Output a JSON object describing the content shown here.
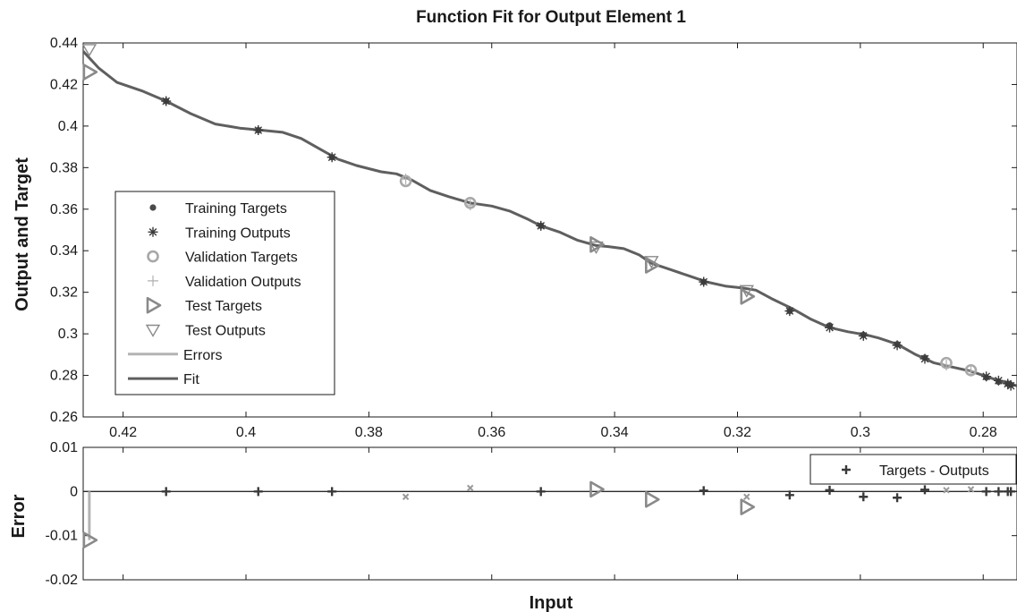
{
  "chart_data": [
    {
      "type": "scatter",
      "title": "Function Fit for Output Element 1",
      "xlabel": "",
      "ylabel": "Output and Target",
      "x_reversed": true,
      "xlim": [
        0.4265,
        0.2745
      ],
      "ylim": [
        0.26,
        0.44
      ],
      "xticks": [
        {
          "v": 0.42,
          "label": "0.42"
        },
        {
          "v": 0.4,
          "label": "0.4"
        },
        {
          "v": 0.38,
          "label": "0.38"
        },
        {
          "v": 0.36,
          "label": "0.36"
        },
        {
          "v": 0.34,
          "label": "0.34"
        },
        {
          "v": 0.32,
          "label": "0.32"
        },
        {
          "v": 0.3,
          "label": "0.3"
        },
        {
          "v": 0.28,
          "label": "0.28"
        }
      ],
      "yticks": [
        {
          "v": 0.26,
          "label": "0.26"
        },
        {
          "v": 0.28,
          "label": "0.28"
        },
        {
          "v": 0.3,
          "label": "0.3"
        },
        {
          "v": 0.32,
          "label": "0.32"
        },
        {
          "v": 0.34,
          "label": "0.34"
        },
        {
          "v": 0.36,
          "label": "0.36"
        },
        {
          "v": 0.38,
          "label": "0.38"
        },
        {
          "v": 0.4,
          "label": "0.4"
        },
        {
          "v": 0.42,
          "label": "0.42"
        },
        {
          "v": 0.44,
          "label": "0.44"
        }
      ],
      "legend_position": "left",
      "legend": [
        {
          "marker": "dot",
          "label": "Training Targets"
        },
        {
          "marker": "asterisk",
          "label": "Training Outputs"
        },
        {
          "marker": "circle",
          "label": "Validation Targets"
        },
        {
          "marker": "plus",
          "label": "Validation Outputs"
        },
        {
          "marker": "triangle-right",
          "label": "Test Targets"
        },
        {
          "marker": "triangle-down",
          "label": "Test Outputs"
        },
        {
          "marker": "line-light",
          "label": "Errors"
        },
        {
          "marker": "line-dark",
          "label": "Fit"
        }
      ],
      "fit_line": [
        [
          0.4265,
          0.436
        ],
        [
          0.424,
          0.428
        ],
        [
          0.421,
          0.421
        ],
        [
          0.417,
          0.417
        ],
        [
          0.413,
          0.412
        ],
        [
          0.409,
          0.406
        ],
        [
          0.405,
          0.401
        ],
        [
          0.401,
          0.399
        ],
        [
          0.3975,
          0.398
        ],
        [
          0.394,
          0.397
        ],
        [
          0.391,
          0.394
        ],
        [
          0.388,
          0.389
        ],
        [
          0.385,
          0.384
        ],
        [
          0.382,
          0.381
        ],
        [
          0.378,
          0.378
        ],
        [
          0.3755,
          0.377
        ],
        [
          0.373,
          0.374
        ],
        [
          0.37,
          0.369
        ],
        [
          0.367,
          0.366
        ],
        [
          0.3635,
          0.363
        ],
        [
          0.36,
          0.3615
        ],
        [
          0.357,
          0.359
        ],
        [
          0.354,
          0.355
        ],
        [
          0.352,
          0.352
        ],
        [
          0.349,
          0.349
        ],
        [
          0.346,
          0.345
        ],
        [
          0.343,
          0.3425
        ],
        [
          0.341,
          0.342
        ],
        [
          0.3385,
          0.341
        ],
        [
          0.336,
          0.338
        ],
        [
          0.334,
          0.334
        ],
        [
          0.331,
          0.331
        ],
        [
          0.328,
          0.328
        ],
        [
          0.325,
          0.325
        ],
        [
          0.322,
          0.323
        ],
        [
          0.319,
          0.322
        ],
        [
          0.317,
          0.321
        ],
        [
          0.3145,
          0.317
        ],
        [
          0.311,
          0.312
        ],
        [
          0.308,
          0.307
        ],
        [
          0.305,
          0.303
        ],
        [
          0.302,
          0.301
        ],
        [
          0.299,
          0.2995
        ],
        [
          0.297,
          0.298
        ],
        [
          0.294,
          0.295
        ],
        [
          0.291,
          0.29
        ],
        [
          0.288,
          0.286
        ],
        [
          0.285,
          0.284
        ],
        [
          0.282,
          0.282
        ],
        [
          0.279,
          0.279
        ],
        [
          0.277,
          0.277
        ],
        [
          0.2745,
          0.275
        ]
      ],
      "training_targets": [
        [
          0.413,
          0.412
        ],
        [
          0.398,
          0.398
        ],
        [
          0.386,
          0.385
        ],
        [
          0.352,
          0.352
        ],
        [
          0.3255,
          0.325
        ],
        [
          0.3115,
          0.311
        ],
        [
          0.305,
          0.304
        ],
        [
          0.2995,
          0.2995
        ],
        [
          0.294,
          0.295
        ],
        [
          0.2895,
          0.2885
        ],
        [
          0.2795,
          0.279
        ],
        [
          0.2775,
          0.277
        ],
        [
          0.276,
          0.276
        ],
        [
          0.2755,
          0.2755
        ]
      ],
      "training_outputs": [
        [
          0.413,
          0.412
        ],
        [
          0.398,
          0.398
        ],
        [
          0.386,
          0.385
        ],
        [
          0.352,
          0.352
        ],
        [
          0.3255,
          0.325
        ],
        [
          0.3115,
          0.311
        ],
        [
          0.305,
          0.303
        ],
        [
          0.2995,
          0.299
        ],
        [
          0.294,
          0.2945
        ],
        [
          0.2895,
          0.288
        ],
        [
          0.2795,
          0.2795
        ],
        [
          0.2775,
          0.2775
        ],
        [
          0.276,
          0.276
        ],
        [
          0.2755,
          0.275
        ]
      ],
      "validation_targets": [
        [
          0.374,
          0.3735
        ],
        [
          0.3635,
          0.363
        ],
        [
          0.286,
          0.286
        ],
        [
          0.282,
          0.2825
        ]
      ],
      "validation_outputs": [
        [
          0.374,
          0.3745
        ],
        [
          0.3635,
          0.362
        ],
        [
          0.286,
          0.285
        ],
        [
          0.282,
          0.282
        ]
      ],
      "test_targets": [
        [
          0.4255,
          0.426
        ],
        [
          0.343,
          0.343
        ],
        [
          0.334,
          0.333
        ],
        [
          0.3185,
          0.318
        ]
      ],
      "test_outputs": [
        [
          0.4255,
          0.437
        ],
        [
          0.343,
          0.342
        ],
        [
          0.334,
          0.335
        ],
        [
          0.3185,
          0.321
        ]
      ]
    },
    {
      "type": "scatter",
      "title": "",
      "xlabel": "Input",
      "ylabel": "Error",
      "x_reversed": true,
      "xlim": [
        0.4265,
        0.2745
      ],
      "ylim": [
        -0.02,
        0.01
      ],
      "yticks": [
        {
          "v": -0.02,
          "label": "-0.02"
        },
        {
          "v": -0.01,
          "label": "-0.01"
        },
        {
          "v": 0,
          "label": "0"
        },
        {
          "v": 0.01,
          "label": "0.01"
        }
      ],
      "legend_position": "top-right",
      "legend": [
        {
          "marker": "plus",
          "label": "Targets - Outputs"
        }
      ],
      "zero_line": true,
      "error_stems": [
        [
          0.4255,
          -0.011
        ]
      ],
      "error_points": [
        [
          0.413,
          0.0
        ],
        [
          0.398,
          0.0
        ],
        [
          0.386,
          0.0
        ],
        [
          0.352,
          0.0
        ],
        [
          0.3255,
          0.0002
        ],
        [
          0.3115,
          -0.0008
        ],
        [
          0.305,
          0.0003
        ],
        [
          0.2995,
          -0.0012
        ],
        [
          0.294,
          -0.0014
        ],
        [
          0.2895,
          0.0004
        ],
        [
          0.2795,
          0.0
        ],
        [
          0.2775,
          0.0
        ],
        [
          0.276,
          0.0
        ],
        [
          0.2755,
          0.0
        ]
      ],
      "validation_errors": [
        [
          0.374,
          -0.0012
        ],
        [
          0.3635,
          0.0008
        ],
        [
          0.286,
          0.0003
        ],
        [
          0.282,
          0.0005
        ],
        [
          0.3185,
          -0.0012
        ]
      ],
      "test_errors": [
        [
          0.4255,
          -0.011
        ],
        [
          0.343,
          0.0005
        ],
        [
          0.334,
          -0.0018
        ],
        [
          0.3185,
          -0.0035
        ]
      ]
    }
  ]
}
